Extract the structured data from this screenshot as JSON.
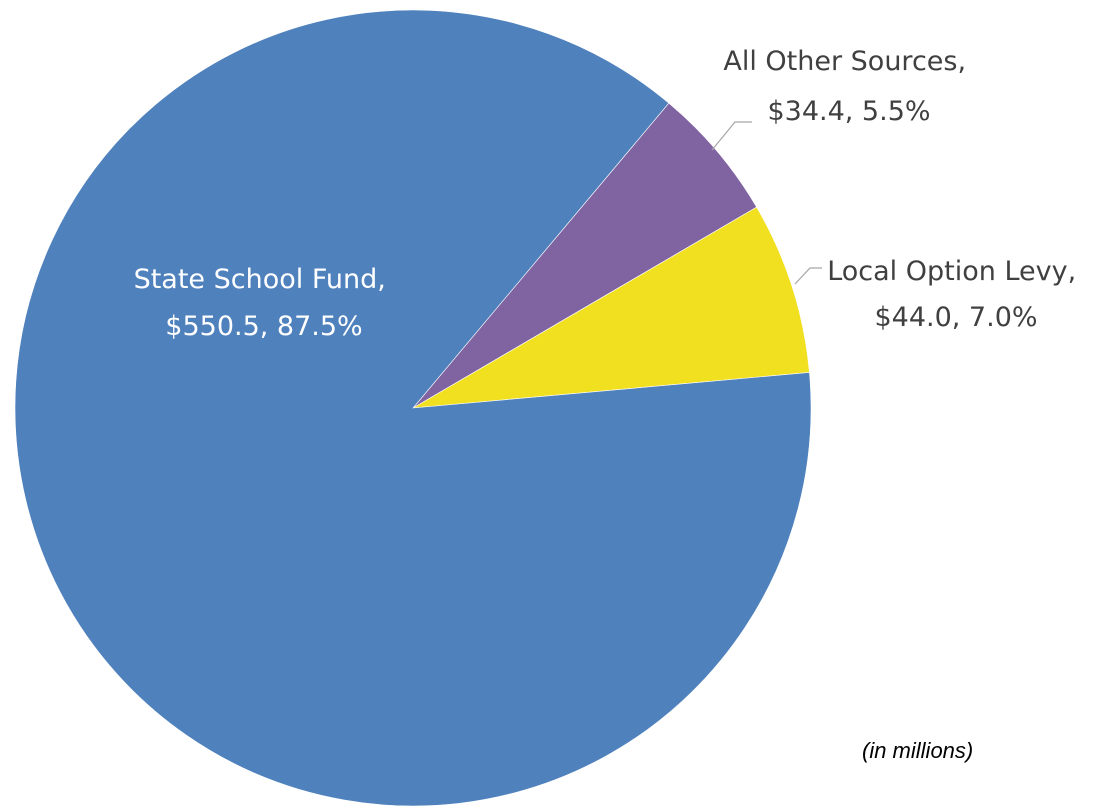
{
  "chart_data": {
    "type": "pie",
    "title": "",
    "unit_note": "(in millions)",
    "slices": [
      {
        "name": "State School Fund",
        "value": 550.5,
        "percent": "87.5%",
        "label_line1": "State School Fund,",
        "label_line2": "$550.5, 87.5%",
        "color": "#4f81bd"
      },
      {
        "name": "All Other Sources",
        "value": 34.4,
        "percent": "5.5%",
        "label_line1": "All Other Sources,",
        "label_line2": "$34.4, 5.5%",
        "color": "#8064a2"
      },
      {
        "name": "Local Option Levy",
        "value": 44.0,
        "percent": "7.0%",
        "label_line1": "Local Option Levy,",
        "label_line2": "$44.0, 7.0%",
        "color": "#f0e020"
      }
    ]
  }
}
